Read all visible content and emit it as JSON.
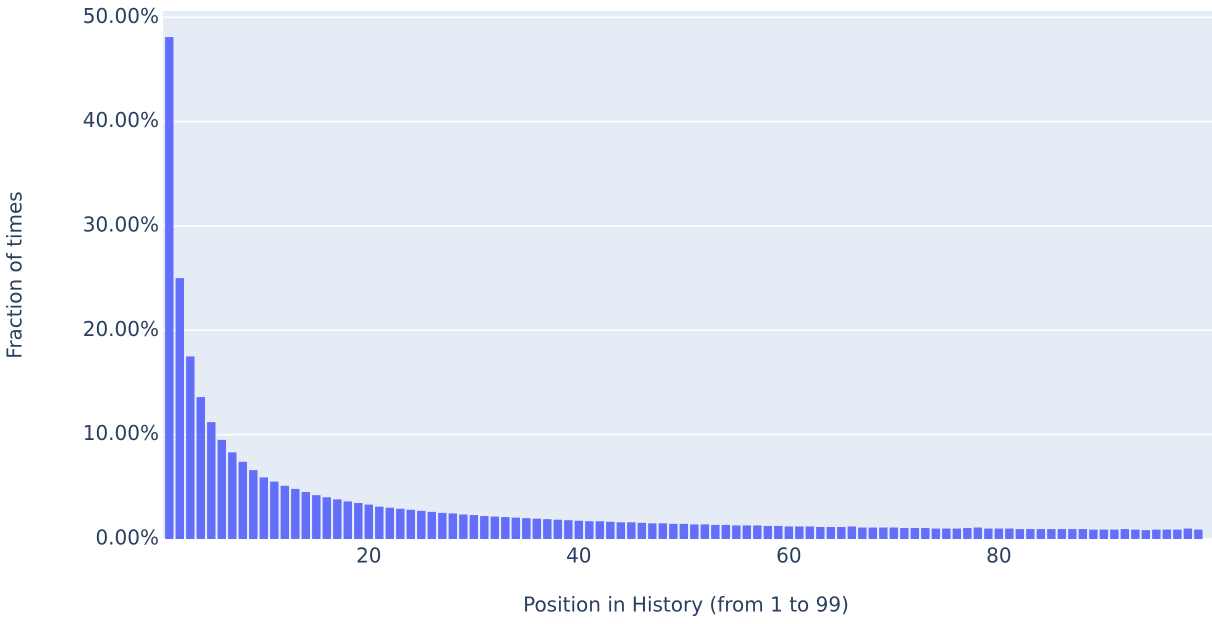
{
  "chart_data": {
    "type": "bar",
    "x_label": "Position in History (from 1 to 99)",
    "y_label": "Fraction of times",
    "x": [
      1,
      2,
      3,
      4,
      5,
      6,
      7,
      8,
      9,
      10,
      11,
      12,
      13,
      14,
      15,
      16,
      17,
      18,
      19,
      20,
      21,
      22,
      23,
      24,
      25,
      26,
      27,
      28,
      29,
      30,
      31,
      32,
      33,
      34,
      35,
      36,
      37,
      38,
      39,
      40,
      41,
      42,
      43,
      44,
      45,
      46,
      47,
      48,
      49,
      50,
      51,
      52,
      53,
      54,
      55,
      56,
      57,
      58,
      59,
      60,
      61,
      62,
      63,
      64,
      65,
      66,
      67,
      68,
      69,
      70,
      71,
      72,
      73,
      74,
      75,
      76,
      77,
      78,
      79,
      80,
      81,
      82,
      83,
      84,
      85,
      86,
      87,
      88,
      89,
      90,
      91,
      92,
      93,
      94,
      95,
      96,
      97,
      98,
      99
    ],
    "values": [
      48.1,
      25.0,
      17.5,
      13.6,
      11.2,
      9.5,
      8.3,
      7.4,
      6.6,
      5.9,
      5.5,
      5.1,
      4.8,
      4.5,
      4.2,
      4.0,
      3.8,
      3.6,
      3.45,
      3.3,
      3.1,
      3.0,
      2.9,
      2.8,
      2.7,
      2.6,
      2.5,
      2.45,
      2.35,
      2.3,
      2.2,
      2.15,
      2.1,
      2.05,
      2.0,
      1.95,
      1.9,
      1.85,
      1.8,
      1.75,
      1.7,
      1.7,
      1.65,
      1.6,
      1.6,
      1.55,
      1.5,
      1.5,
      1.45,
      1.45,
      1.4,
      1.4,
      1.35,
      1.35,
      1.3,
      1.3,
      1.3,
      1.25,
      1.25,
      1.2,
      1.2,
      1.2,
      1.15,
      1.15,
      1.15,
      1.2,
      1.1,
      1.1,
      1.1,
      1.1,
      1.05,
      1.05,
      1.05,
      1.0,
      1.0,
      1.0,
      1.05,
      1.1,
      1.0,
      1.0,
      1.0,
      0.95,
      0.95,
      0.95,
      0.95,
      0.95,
      0.95,
      0.95,
      0.9,
      0.9,
      0.9,
      0.95,
      0.9,
      0.85,
      0.9,
      0.9,
      0.9,
      1.0,
      0.9
    ],
    "color": "#636efa",
    "xlim": [
      0.4,
      100.3
    ],
    "xticks": [
      20,
      40,
      60,
      80
    ],
    "ylim": [
      0,
      50.6
    ],
    "yticks": [
      {
        "value": 0,
        "label": "0.00%"
      },
      {
        "value": 10,
        "label": "10.00%"
      },
      {
        "value": 20,
        "label": "20.00%"
      },
      {
        "value": 30,
        "label": "30.00%"
      },
      {
        "value": 40,
        "label": "40.00%"
      },
      {
        "value": 50,
        "label": "50.00%"
      }
    ],
    "grid": true
  }
}
